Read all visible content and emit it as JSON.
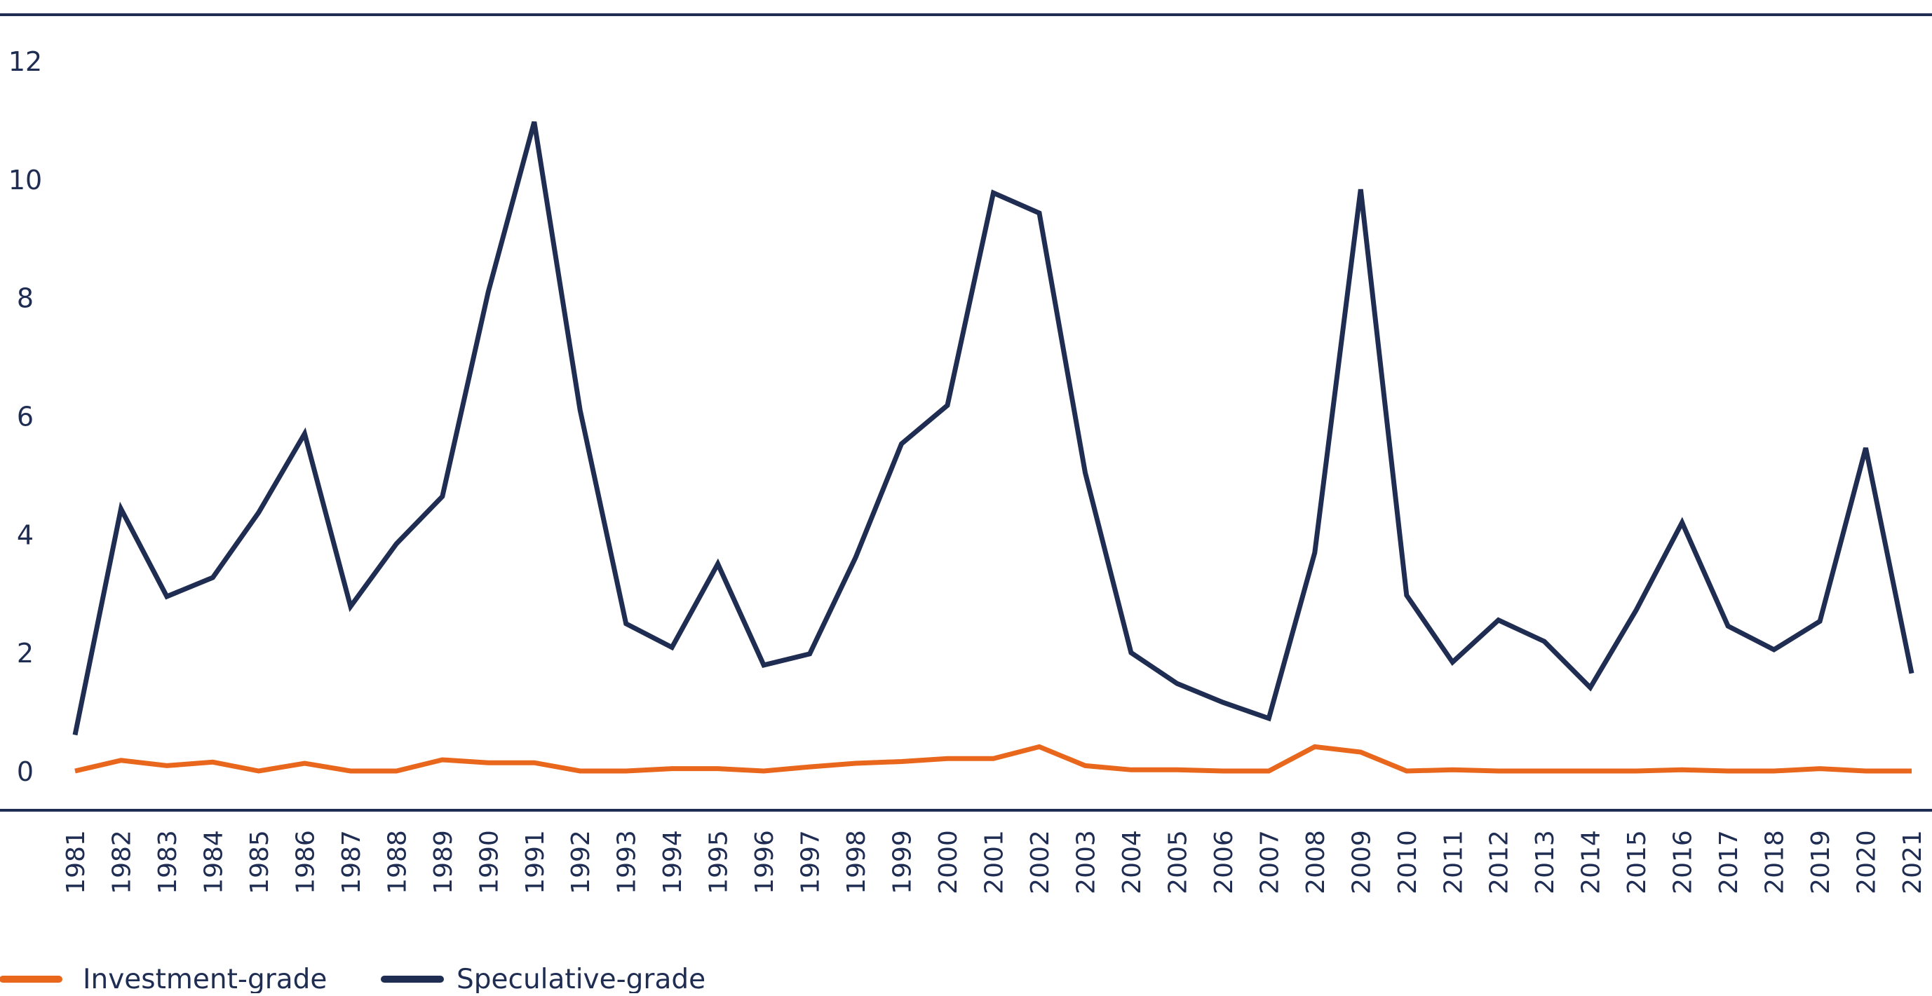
{
  "chart_data": {
    "type": "line",
    "title": "",
    "xlabel": "",
    "ylabel": "",
    "ylim": [
      0,
      12
    ],
    "yticks": [
      0,
      2,
      4,
      6,
      8,
      10,
      12
    ],
    "grid": false,
    "legend_position": "bottom-left",
    "categories": [
      "1981",
      "1982",
      "1983",
      "1984",
      "1985",
      "1986",
      "1987",
      "1988",
      "1989",
      "1990",
      "1991",
      "1992",
      "1993",
      "1994",
      "1995",
      "1996",
      "1997",
      "1998",
      "1999",
      "2000",
      "2001",
      "2002",
      "2003",
      "2004",
      "2005",
      "2006",
      "2007",
      "2008",
      "2009",
      "2010",
      "2011",
      "2012",
      "2013",
      "2014",
      "2015",
      "2016",
      "2017",
      "2018",
      "2019",
      "2020",
      "2021"
    ],
    "series": [
      {
        "name": "Investment-grade",
        "color": "#e8671c",
        "values": [
          0,
          0.18,
          0.09,
          0.15,
          0,
          0.13,
          0,
          0,
          0.19,
          0.14,
          0.14,
          0,
          0,
          0.04,
          0.04,
          0,
          0.07,
          0.13,
          0.16,
          0.21,
          0.21,
          0.41,
          0.09,
          0.02,
          0.02,
          0,
          0,
          0.41,
          0.32,
          0,
          0.02,
          0,
          0,
          0,
          0,
          0.02,
          0,
          0,
          0.04,
          0,
          0
        ]
      },
      {
        "name": "Speculative-grade",
        "color": "#1f2d52",
        "values": [
          0.61,
          4.43,
          2.95,
          3.27,
          4.37,
          5.7,
          2.78,
          3.84,
          4.64,
          8.1,
          10.97,
          6.1,
          2.49,
          2.09,
          3.5,
          1.79,
          1.98,
          3.61,
          5.53,
          6.18,
          9.77,
          9.43,
          5.04,
          2.0,
          1.48,
          1.16,
          0.89,
          3.69,
          9.83,
          2.97,
          1.84,
          2.55,
          2.19,
          1.41,
          2.72,
          4.2,
          2.45,
          2.05,
          2.53,
          5.46,
          1.65
        ]
      }
    ]
  }
}
